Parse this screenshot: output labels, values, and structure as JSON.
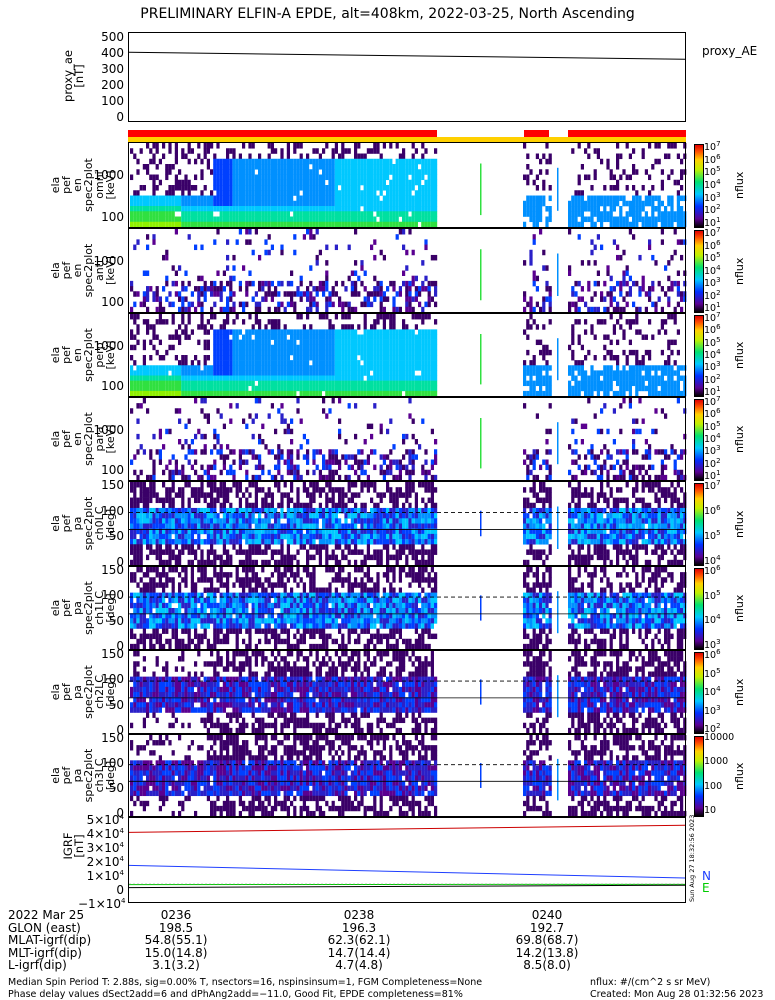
{
  "title": "PRELIMINARY ELFIN-A EPDE, alt=408km, 2022-03-25, North Ascending",
  "proxy_panel": {
    "ylabel": "proxy_ae\n[nT]",
    "yticks": [
      "500",
      "400",
      "300",
      "200",
      "100",
      "0"
    ],
    "legend": "proxy_AE"
  },
  "spectrogram_panels": [
    {
      "ylabel": "ela\npef\nen\nspec2plot\nomni\n[keV]",
      "yticks": [
        "1000",
        "100"
      ]
    },
    {
      "ylabel": "ela\npef\nen\nspec2plot\nanti\n[keV]",
      "yticks": [
        "1000",
        "100"
      ]
    },
    {
      "ylabel": "ela\npef\nen\nspec2plot\nperp\n[keV]",
      "yticks": [
        "1000",
        "100"
      ]
    },
    {
      "ylabel": "ela\npef\nen\nspec2plot\npara\n[keV]",
      "yticks": [
        "1000",
        "100"
      ]
    },
    {
      "ylabel": "ela\npef\npa\nspec2plot\nch0LC\n[deg]",
      "yticks": [
        "150",
        "100",
        "50",
        "0"
      ]
    },
    {
      "ylabel": "ela\npef\npa\nspec2plot\nch1LC\n[deg]",
      "yticks": [
        "150",
        "100",
        "50",
        "0"
      ]
    },
    {
      "ylabel": "ela\npef\npa\nspec2plot\nch2LC\n[deg]",
      "yticks": [
        "150",
        "100",
        "50",
        "0"
      ]
    },
    {
      "ylabel": "ela\npef\npa\nspec2plot\nch3LC\n[deg]",
      "yticks": [
        "150",
        "100",
        "50",
        "0"
      ]
    }
  ],
  "colorbars": [
    {
      "label": "nflux",
      "ticks": [
        "10^7",
        "10^6",
        "10^5",
        "10^4",
        "10^3",
        "10^2",
        "10^1"
      ]
    },
    {
      "label": "nflux",
      "ticks": [
        "10^7",
        "10^6",
        "10^5",
        "10^4",
        "10^3",
        "10^2",
        "10^1"
      ]
    },
    {
      "label": "nflux",
      "ticks": [
        "10^7",
        "10^6",
        "10^5",
        "10^4",
        "10^3",
        "10^2",
        "10^1"
      ]
    },
    {
      "label": "nflux",
      "ticks": [
        "10^7",
        "10^6",
        "10^5",
        "10^4",
        "10^3",
        "10^2",
        "10^1"
      ]
    },
    {
      "label": "nflux",
      "ticks": [
        "10^7",
        "10^6",
        "10^5",
        "10^4"
      ]
    },
    {
      "label": "nflux",
      "ticks": [
        "10^6",
        "10^5",
        "10^4",
        "10^3"
      ]
    },
    {
      "label": "nflux",
      "ticks": [
        "10^6",
        "10^5",
        "10^4",
        "10^3",
        "10^2"
      ]
    },
    {
      "label": "nflux",
      "ticks": [
        "10000",
        "1000",
        "100",
        "10"
      ]
    }
  ],
  "igrf_panel": {
    "ylabel": "IGRF\n[nT]",
    "yticks": [
      "5×10^4",
      "4×10^4",
      "3×10^4",
      "2×10^4",
      "1×10^4",
      "0",
      "−1×10^4"
    ],
    "legend": [
      "N",
      "E"
    ],
    "stamp": "Sun Aug 27 18:32:56 2023"
  },
  "axis_rows": [
    {
      "label": "2022 Mar 25",
      "values": [
        "0236",
        "0238",
        "0240"
      ]
    },
    {
      "label": "GLON (east)",
      "values": [
        "198.5",
        "196.3",
        "192.7"
      ]
    },
    {
      "label": "MLAT-igrf(dip)",
      "values": [
        "54.8(55.1)",
        "62.3(62.1)",
        "69.8(68.7)"
      ]
    },
    {
      "label": "MLT-igrf(dip)",
      "values": [
        "15.0(14.8)",
        "14.7(14.4)",
        "14.2(13.8)"
      ]
    },
    {
      "label": "L-igrf(dip)",
      "values": [
        "3.1(3.2)",
        "4.7(4.8)",
        "8.5(8.0)"
      ]
    }
  ],
  "footer": {
    "line1": "Median Spin Period T: 2.88s, sig=0.00% T, nsectors=16, nspinsinsum=1, FGM Completeness=None",
    "line2": "Phase delay values dSect2add=6 and dPhAng2add=−11.0, Good Fit, EPDE completeness=81%",
    "units": "nflux: #/(cm^2 s sr MeV)",
    "created": "Created: Mon Aug 28 01:32:56 2023"
  },
  "colors": {
    "red_bar": "#ff0000",
    "yellow_bar": "#ffd000",
    "n_line": "#1f3fff",
    "e_line": "#00cc00",
    "total_line": "#cc0000"
  },
  "chart_data": [
    {
      "type": "line",
      "title": "proxy_AE",
      "x": [
        "0235",
        "0241"
      ],
      "series": [
        {
          "name": "proxy_AE",
          "values": [
            405,
            362
          ]
        }
      ],
      "ylim": [
        0,
        530
      ]
    },
    {
      "type": "line",
      "title": "IGRF",
      "x": [
        "0235",
        "0241"
      ],
      "ylim": [
        -15000,
        55000
      ],
      "series": [
        {
          "name": "",
          "values": [
            43000,
            49000
          ]
        },
        {
          "name": "N",
          "values": [
            15500,
            5000
          ]
        },
        {
          "name": "E",
          "values": [
            -500,
            -300
          ]
        },
        {
          "name": "",
          "values": [
            -3000,
            -1000
          ]
        }
      ]
    }
  ]
}
